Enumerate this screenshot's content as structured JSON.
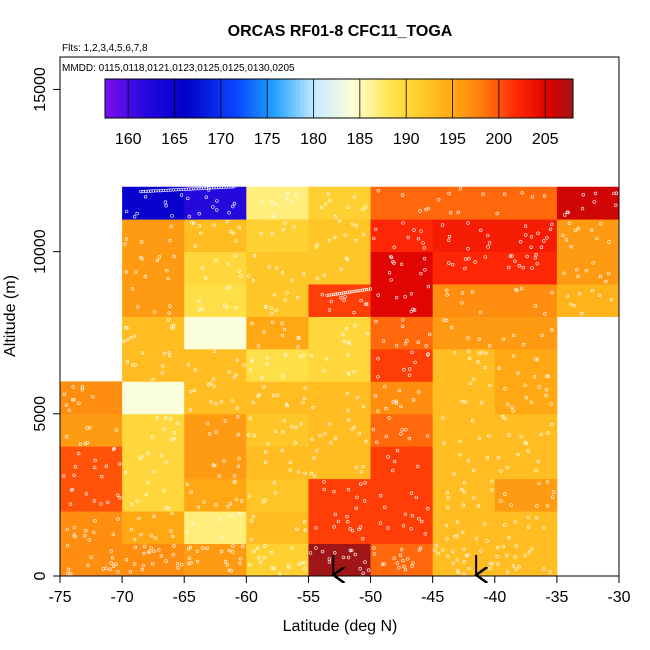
{
  "chart_data": {
    "type": "heatmap",
    "title": "ORCAS RF01-8 CFC11_TOGA",
    "annotation_flights": "Flts: 1,2,3,4,5,6,7,8",
    "annotation_dates": "MMDD: 0115,0118,0121,0123,0125,0125,0130,0205",
    "xlabel": "Latitude (deg N)",
    "ylabel": "Altitude (m)",
    "xlim": [
      -75,
      -30
    ],
    "ylim": [
      0,
      16000
    ],
    "x_ticks": [
      -75,
      -70,
      -65,
      -60,
      -55,
      -50,
      -45,
      -40,
      -35,
      -30
    ],
    "x_tick_labels": [
      "-75",
      "-70",
      "-65",
      "-60",
      "-55",
      "-50",
      "-45",
      "-40",
      "-35",
      "-30"
    ],
    "y_ticks": [
      0,
      5000,
      10000,
      15000
    ],
    "y_tick_labels": [
      "0",
      "5000",
      "10000",
      "15000"
    ],
    "colorbar": {
      "min": 157.5,
      "max": 208,
      "ticks": [
        160,
        165,
        170,
        175,
        180,
        185,
        190,
        195,
        200,
        205
      ],
      "tick_labels": [
        "160",
        "165",
        "170",
        "175",
        "180",
        "185",
        "190",
        "195",
        "200",
        "205"
      ]
    },
    "bin_width_deg": 5,
    "bin_height_m": 1000,
    "columns": [
      {
        "lat_start": -75,
        "alt_start": 0,
        "values": [
          197,
          197,
          200,
          200,
          196,
          197
        ]
      },
      {
        "lat_start": -70,
        "alt_start": 0,
        "values": [
          197,
          195,
          190,
          190,
          190,
          184,
          193,
          193,
          196,
          196,
          196,
          165
        ]
      },
      {
        "lat_start": -65,
        "alt_start": 0,
        "values": [
          196,
          187,
          195,
          196,
          196,
          193,
          193,
          184,
          189,
          190,
          193,
          162
        ]
      },
      {
        "lat_start": -60,
        "alt_start": 0,
        "values": [
          191,
          193,
          192,
          193,
          192,
          193,
          189,
          195,
          192,
          192,
          191,
          187
        ]
      },
      {
        "lat_start": -55,
        "alt_start": 0,
        "values": [
          208,
          201,
          201,
          193,
          193,
          193,
          190,
          190,
          201,
          192,
          192,
          191
        ]
      },
      {
        "lat_start": -50,
        "alt_start": 0,
        "values": [
          199,
          201,
          201,
          201,
          199,
          197,
          201,
          199,
          205,
          205,
          202,
          199
        ]
      },
      {
        "lat_start": -45,
        "alt_start": 0,
        "values": [
          193,
          193,
          193,
          193,
          193,
          193,
          193,
          196,
          197,
          202,
          203,
          199
        ]
      },
      {
        "lat_start": -40,
        "alt_start": 0,
        "values": [
          193,
          193,
          196,
          193,
          193,
          195,
          195,
          196,
          197,
          202,
          203,
          199
        ]
      },
      {
        "lat_start": -35,
        "alt_start": 0,
        "values": [
          null,
          null,
          null,
          null,
          null,
          null,
          null,
          null,
          194,
          196,
          196,
          206
        ]
      }
    ],
    "arrows_at_latitude": [
      -53,
      -41.5
    ]
  }
}
